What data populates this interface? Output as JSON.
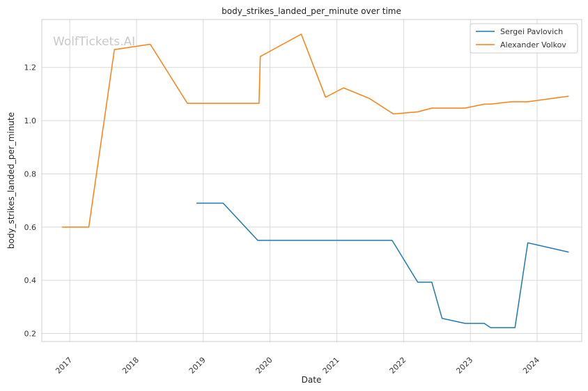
{
  "chart_data": {
    "type": "line",
    "title": "body_strikes_landed_per_minute over time",
    "xlabel": "Date",
    "ylabel": "body_strikes_landed_per_minute",
    "watermark": "WolfTickets.AI",
    "x_ticks": [
      "2017",
      "2018",
      "2019",
      "2020",
      "2021",
      "2022",
      "2023",
      "2024"
    ],
    "y_ticks": [
      "0.2",
      "0.4",
      "0.6",
      "0.8",
      "1.0",
      "1.2"
    ],
    "xlim": [
      "2016-08-01",
      "2024-09-01"
    ],
    "ylim": [
      0.17,
      1.38
    ],
    "grid": true,
    "legend_position": "top-right",
    "colors": {
      "grid": "#d9d9d9",
      "axes": "#cccccc"
    },
    "series": [
      {
        "name": "Sergei Pavlovich",
        "color": "#1f77b4",
        "points": [
          [
            "2018-11-25",
            0.69
          ],
          [
            "2019-04-20",
            0.69
          ],
          [
            "2019-10-26",
            0.55
          ],
          [
            "2021-10-30",
            0.55
          ],
          [
            "2022-03-19",
            0.393
          ],
          [
            "2022-06-04",
            0.393
          ],
          [
            "2022-07-30",
            0.257
          ],
          [
            "2022-12-03",
            0.238
          ],
          [
            "2023-03-18",
            0.238
          ],
          [
            "2023-04-22",
            0.222
          ],
          [
            "2023-09-02",
            0.222
          ],
          [
            "2023-11-11",
            0.541
          ],
          [
            "2024-06-22",
            0.506
          ]
        ]
      },
      {
        "name": "Alexander Volkov",
        "color": "#ff7f0e",
        "points": [
          [
            "2016-11-19",
            0.6
          ],
          [
            "2017-04-15",
            0.6
          ],
          [
            "2017-09-02",
            1.267
          ],
          [
            "2018-03-17",
            1.287
          ],
          [
            "2018-10-06",
            1.065
          ],
          [
            "2019-11-02",
            1.065
          ],
          [
            "2019-11-09",
            1.241
          ],
          [
            "2020-06-20",
            1.325
          ],
          [
            "2020-10-31",
            1.088
          ],
          [
            "2021-02-06",
            1.123
          ],
          [
            "2021-06-26",
            1.084
          ],
          [
            "2021-11-06",
            1.025
          ],
          [
            "2022-03-19",
            1.033
          ],
          [
            "2022-06-04",
            1.047
          ],
          [
            "2022-12-03",
            1.047
          ],
          [
            "2023-03-18",
            1.062
          ],
          [
            "2023-04-22",
            1.062
          ],
          [
            "2023-08-12",
            1.071
          ],
          [
            "2023-11-11",
            1.071
          ],
          [
            "2024-06-22",
            1.092
          ]
        ]
      }
    ]
  }
}
